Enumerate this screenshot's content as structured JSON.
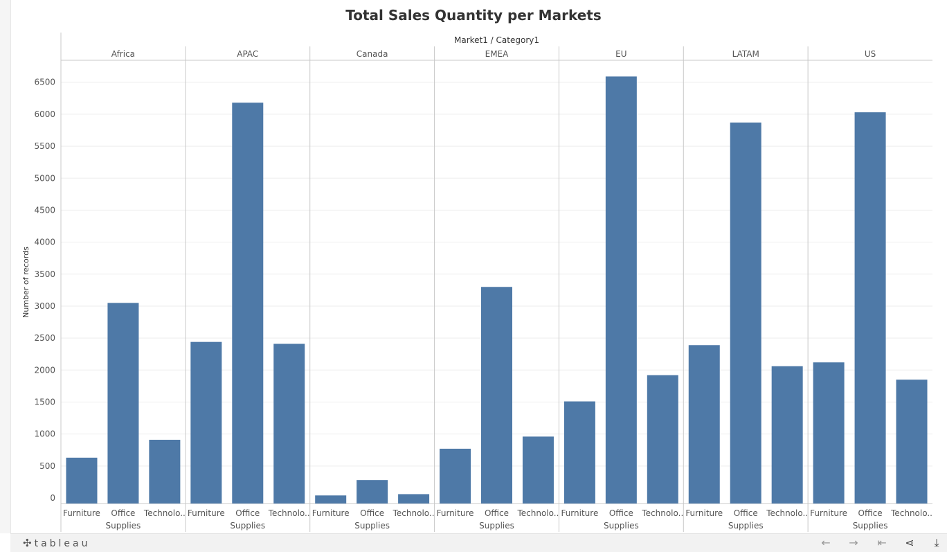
{
  "title": "Total Sales Quantity per Markets",
  "toolbar": {
    "logo_text": "tableau",
    "icons": [
      "undo-icon",
      "redo-icon",
      "revert-icon",
      "share-icon",
      "download-icon"
    ]
  },
  "colors": {
    "bar": "#4e79a7",
    "grid": "#eeeeee",
    "divider": "#c8c8c8",
    "text": "#555555"
  },
  "chart_data": {
    "type": "bar",
    "title": "Total Sales Quantity per Markets",
    "header": "Market1 / Category1",
    "ylabel": "Number of records",
    "ylim": [
      0,
      6900
    ],
    "yticks": [
      0,
      500,
      1000,
      1500,
      2000,
      2500,
      3000,
      3500,
      4000,
      4500,
      5000,
      5500,
      6000,
      6500
    ],
    "grid": true,
    "markets": [
      "Africa",
      "APAC",
      "Canada",
      "EMEA",
      "EU",
      "LATAM",
      "US"
    ],
    "categories": [
      "Furniture",
      "Office Supplies",
      "Technology"
    ],
    "category_labels": [
      [
        "Furniture"
      ],
      [
        "Office",
        "Supplies"
      ],
      [
        "Technolo.."
      ]
    ],
    "values": [
      [
        630,
        3050,
        910
      ],
      [
        2440,
        6180,
        2410
      ],
      [
        40,
        280,
        60
      ],
      [
        770,
        3300,
        960
      ],
      [
        1510,
        6590,
        1920
      ],
      [
        2390,
        5870,
        2060
      ],
      [
        2120,
        6030,
        1850
      ]
    ]
  }
}
